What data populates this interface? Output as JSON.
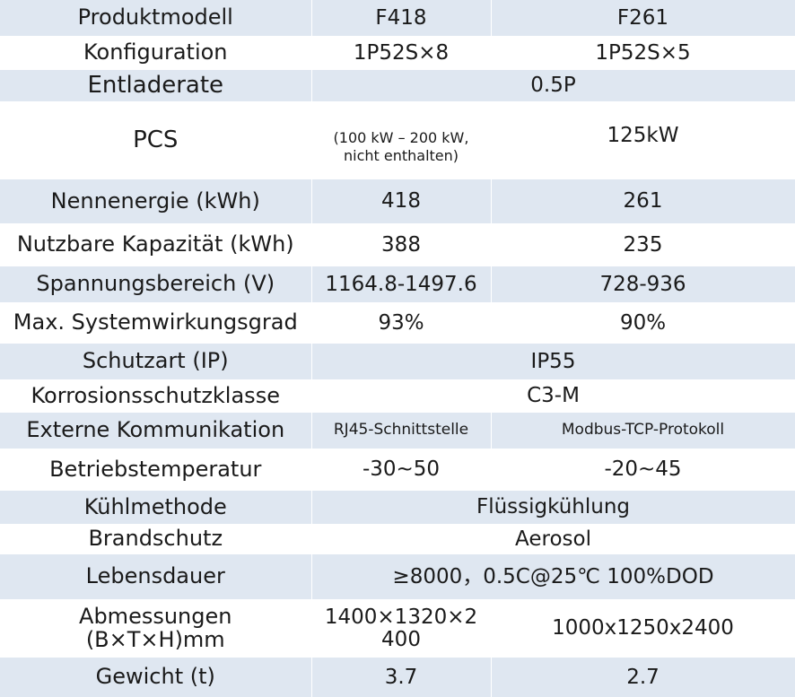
{
  "rows": [
    {
      "label": "Produktmodell",
      "f418": "F418",
      "f261": "F261"
    },
    {
      "label": "Konfiguration",
      "f418": "1P52S×8",
      "f261": "1P52S×5"
    },
    {
      "label": "Entladerate",
      "value": "0.5P"
    },
    {
      "label": "PCS",
      "f418": "(100 kW – 200 kW, nicht enthalten)",
      "f261": "125kW"
    },
    {
      "label": "Nennenergie (kWh)",
      "f418": "418",
      "f261": "261"
    },
    {
      "label": "Nutzbare Kapazität (kWh)",
      "f418": "388",
      "f261": "235"
    },
    {
      "label": "Spannungsbereich (V)",
      "f418": "1164.8-1497.6",
      "f261": "728-936"
    },
    {
      "label": "Max. Systemwirkungsgrad",
      "f418": "93%",
      "f261": "90%"
    },
    {
      "label": "Schutzart (IP)",
      "value": "IP55"
    },
    {
      "label": "Korrosionsschutzklasse",
      "value": "C3-M"
    },
    {
      "label": "Externe Kommunikation",
      "f418": "RJ45-Schnittstelle",
      "f261": "Modbus-TCP-Protokoll"
    },
    {
      "label": "Betriebstemperatur",
      "f418": "-30~50",
      "f261": "-20~45"
    },
    {
      "label": "Kühlmethode",
      "value": "Flüssigkühlung"
    },
    {
      "label": "Brandschutz",
      "value": "Aerosol"
    },
    {
      "label": "Lebensdauer",
      "value": "≥8000，0.5C@25℃ 100%DOD"
    },
    {
      "label": "Abmessungen (B×T×H)mm",
      "label_line1": "Abmessungen",
      "label_line2": "(B×T×H)mm",
      "f418": "1400×1320×2 400",
      "f418_line1": "1400×1320×2",
      "f418_line2": "400",
      "f261": "1000x1250x2400"
    },
    {
      "label": "Gewicht (t)",
      "f418": "3.7",
      "f261": "2.7"
    }
  ]
}
